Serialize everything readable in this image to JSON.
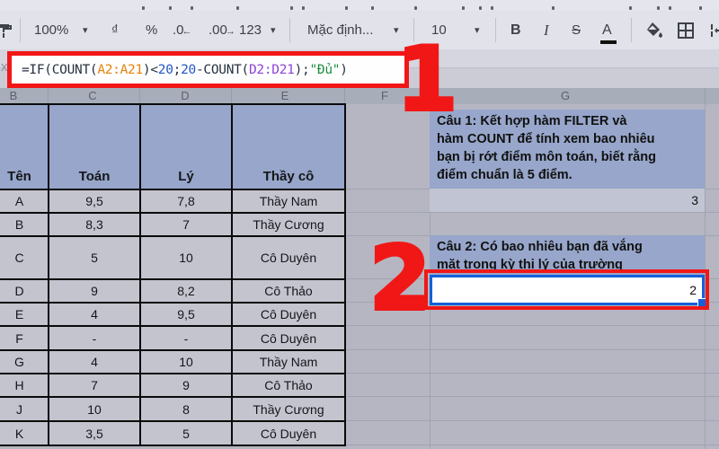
{
  "colors": {
    "annotation_red": "#f11717",
    "selection_blue": "#1560d8",
    "header_blue": "#97a6ca",
    "formula_default": "#273240",
    "formula_range1": "#e8820c",
    "formula_number": "#2456c9",
    "formula_range2": "#8e44d8",
    "formula_string": "#1e8e3e"
  },
  "toolbar": {
    "zoom_value": "100%",
    "currency_label": "₫",
    "percent_label": "%",
    "decrease_decimal_label": ".0",
    "decrease_decimal_arrow": "←",
    "increase_decimal_label": ".00",
    "increase_decimal_arrow": "→",
    "more_formats_label": "123",
    "font_name": "Mặc định...",
    "font_size": "10",
    "bold_label": "B",
    "italic_label": "I",
    "strikethrough_label": "S",
    "text_color_label": "A",
    "caret": "▾"
  },
  "formula_bar": {
    "partial_label": "x",
    "segments": [
      {
        "text": "=IF(COUNT(",
        "color": "default"
      },
      {
        "text": "A2:A21",
        "color": "range1"
      },
      {
        "text": ")<",
        "color": "default"
      },
      {
        "text": "20",
        "color": "number"
      },
      {
        "text": ";",
        "color": "default"
      },
      {
        "text": "20",
        "color": "number"
      },
      {
        "text": "-COUNT(",
        "color": "default"
      },
      {
        "text": "D2:D21",
        "color": "range2"
      },
      {
        "text": ");",
        "color": "default"
      },
      {
        "text": "\"Đủ\"",
        "color": "string"
      },
      {
        "text": ")",
        "color": "default"
      }
    ]
  },
  "sheet": {
    "column_letters": [
      "B",
      "C",
      "D",
      "E",
      "F",
      "G"
    ]
  },
  "table": {
    "headers": [
      "Tên",
      "Toán",
      "Lý",
      "Thầy cô"
    ],
    "rows": [
      [
        "A",
        "9,5",
        "7,8",
        "Thầy Nam"
      ],
      [
        "B",
        "8,3",
        "7",
        "Thầy Cương"
      ],
      [
        "C",
        "5",
        "10",
        "Cô Duyên"
      ],
      [
        "D",
        "9",
        "8,2",
        "Cô Thảo"
      ],
      [
        "E",
        "4",
        "9,5",
        "Cô Duyên"
      ],
      [
        "F",
        "-",
        "-",
        "Cô Duyên"
      ],
      [
        "G",
        "4",
        "10",
        "Thầy Nam"
      ],
      [
        "H",
        "7",
        "9",
        "Cô Thảo"
      ],
      [
        "J",
        "10",
        "8",
        "Thầy Cương"
      ],
      [
        "K",
        "3,5",
        "5",
        "Cô Duyên"
      ]
    ]
  },
  "gcolumn": {
    "question1": "Câu 1: Kết hợp hàm FILTER và\nhàm COUNT để tính xem bao nhiêu\nbạn bị rớt điểm môn toán, biết rằng\nđiểm chuẩn là 5 điểm.",
    "answer1": "3",
    "question2": "Câu 2: Có bao nhiêu bạn đã vắng\nmặt trong kỳ thi lý của trường",
    "answer2": "2"
  },
  "annotations": {
    "step1": "1",
    "step2": "2"
  }
}
